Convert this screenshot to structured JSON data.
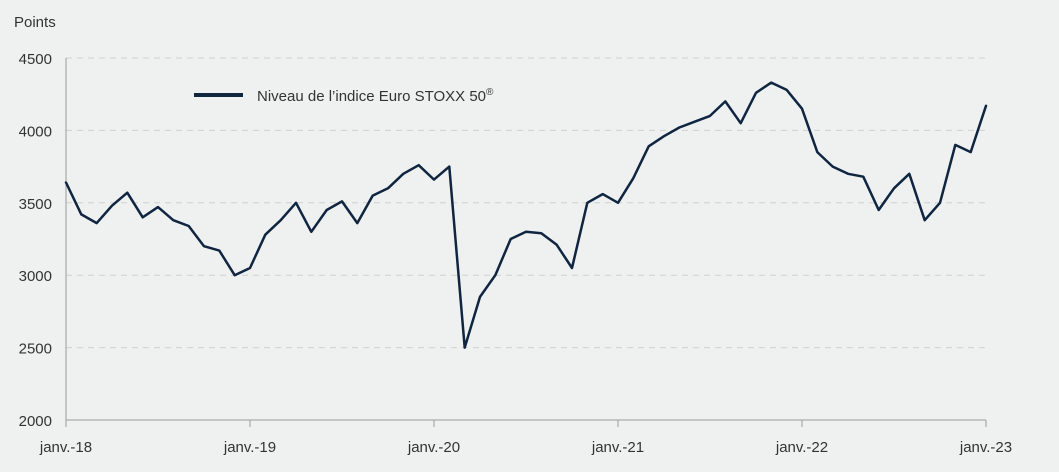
{
  "chart_data": {
    "type": "line",
    "ylabel": "Points",
    "xlabel": "",
    "ylim": [
      2000,
      4500
    ],
    "yticks": [
      2000,
      2500,
      3000,
      3500,
      4000,
      4500
    ],
    "x_ticks": [
      "janv.-18",
      "janv.-19",
      "janv.-20",
      "janv.-21",
      "janv.-22",
      "janv.-23"
    ],
    "xlim": [
      "2018-01",
      "2023-01"
    ],
    "grid": "horizontal dashed",
    "legend_position": "top-left",
    "series": [
      {
        "name": "Niveau de l’indice Euro STOXX 50",
        "name_superscript": "®",
        "color": "#0f2540",
        "x": [
          "2018-01",
          "2018-02",
          "2018-03",
          "2018-04",
          "2018-05",
          "2018-06",
          "2018-07",
          "2018-08",
          "2018-09",
          "2018-10",
          "2018-11",
          "2018-12",
          "2019-01",
          "2019-02",
          "2019-03",
          "2019-04",
          "2019-05",
          "2019-06",
          "2019-07",
          "2019-08",
          "2019-09",
          "2019-10",
          "2019-11",
          "2019-12",
          "2020-01",
          "2020-02",
          "2020-03",
          "2020-04",
          "2020-05",
          "2020-06",
          "2020-07",
          "2020-08",
          "2020-09",
          "2020-10",
          "2020-11",
          "2020-12",
          "2021-01",
          "2021-02",
          "2021-03",
          "2021-04",
          "2021-05",
          "2021-06",
          "2021-07",
          "2021-08",
          "2021-09",
          "2021-10",
          "2021-11",
          "2021-12",
          "2022-01",
          "2022-02",
          "2022-03",
          "2022-04",
          "2022-05",
          "2022-06",
          "2022-07",
          "2022-08",
          "2022-09",
          "2022-10",
          "2022-11",
          "2022-12",
          "2023-01"
        ],
        "y": [
          3640,
          3420,
          3360,
          3480,
          3570,
          3400,
          3470,
          3380,
          3340,
          3200,
          3170,
          3000,
          3050,
          3280,
          3380,
          3500,
          3300,
          3450,
          3510,
          3360,
          3550,
          3600,
          3700,
          3760,
          3660,
          3750,
          2500,
          2850,
          3000,
          3250,
          3300,
          3290,
          3210,
          3050,
          3500,
          3560,
          3500,
          3670,
          3890,
          3960,
          4020,
          4060,
          4100,
          4200,
          4050,
          4260,
          4330,
          4280,
          4150,
          3850,
          3750,
          3700,
          3680,
          3450,
          3600,
          3700,
          3380,
          3500,
          3900,
          3850,
          4170
        ]
      }
    ]
  }
}
